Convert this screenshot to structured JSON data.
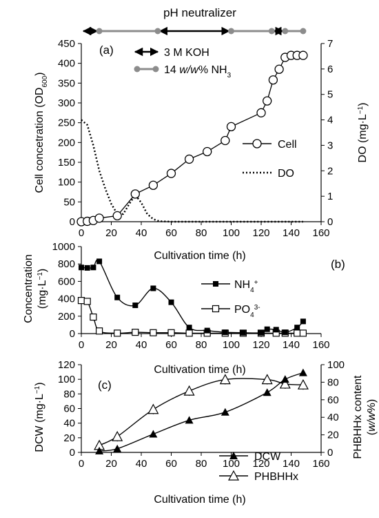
{
  "header": {
    "title": "pH neutralizer",
    "segments": [
      {
        "type": "KOH",
        "start": 0,
        "end": 12
      },
      {
        "type": "NH3",
        "start": 12,
        "end": 51
      },
      {
        "type": "KOH",
        "start": 51,
        "end": 100
      },
      {
        "type": "NH3",
        "start": 100,
        "end": 127
      },
      {
        "type": "KOH",
        "start": 127,
        "end": 136
      },
      {
        "type": "NH3",
        "start": 136,
        "end": 148
      }
    ],
    "markers": [
      0,
      12,
      51,
      100,
      127,
      136,
      148
    ]
  },
  "chart_data": [
    {
      "type": "line",
      "panel_label": "(a)",
      "x_label": "Cultivation time (h)",
      "y_label": "Cell concetration (OD",
      "y_label_sub": "600",
      "y_label_end": ")",
      "y2_label": "DO (mg·L",
      "y2_label_sup": "−1",
      "y2_label_end": ")",
      "xlim": [
        0,
        160
      ],
      "x_ticks": [
        0,
        20,
        40,
        60,
        80,
        100,
        120,
        140,
        160
      ],
      "ylim": [
        0,
        450
      ],
      "y_ticks": [
        0,
        50,
        100,
        150,
        200,
        250,
        300,
        350,
        400,
        450
      ],
      "y2lim": [
        0,
        7
      ],
      "y2_ticks": [
        0,
        1,
        2,
        3,
        4,
        5,
        6,
        7
      ],
      "legend_top": [
        {
          "label": "3 M KOH",
          "style": "double-arrow"
        },
        {
          "label": "14 ",
          "label_italic": "w/w",
          "label_tail": "% NH",
          "label_sub": "3",
          "style": "gray-dots"
        }
      ],
      "series": [
        {
          "name": "Cell",
          "axis": "left",
          "marker": "open-circle",
          "x": [
            0,
            4,
            8,
            12,
            24,
            36,
            48,
            60,
            72,
            84,
            96,
            100,
            120,
            124,
            128,
            132,
            136,
            140,
            144,
            148
          ],
          "y": [
            0,
            1,
            3,
            9,
            15,
            70,
            92,
            122,
            158,
            177,
            205,
            240,
            275,
            305,
            358,
            385,
            415,
            420,
            420,
            420
          ]
        },
        {
          "name": "DO",
          "axis": "right",
          "style": "dotted",
          "x": [
            0,
            4,
            8,
            12,
            16,
            20,
            24,
            28,
            32,
            36,
            40,
            44,
            48,
            52,
            60,
            80,
            100,
            120,
            140,
            148
          ],
          "y": [
            4.0,
            3.8,
            3.0,
            2.0,
            1.3,
            0.7,
            0.3,
            0.3,
            0.7,
            1.05,
            0.75,
            0.3,
            0.1,
            0.02,
            0,
            0,
            0,
            0,
            0,
            0
          ]
        }
      ]
    },
    {
      "type": "line",
      "panel_label": "(b)",
      "x_label": "Cultivation time (h)",
      "y_label": "Concentration",
      "y_label2": "(mg·L",
      "y_label2_sup": "−1",
      "y_label2_end": ")",
      "xlim": [
        0,
        160
      ],
      "x_ticks": [
        0,
        20,
        40,
        60,
        80,
        100,
        120,
        140,
        160
      ],
      "ylim": [
        0,
        1000
      ],
      "y_ticks": [
        0,
        200,
        400,
        600,
        800,
        1000
      ],
      "series": [
        {
          "name": "NH",
          "name_sub": "4",
          "name_sup": "+",
          "marker": "filled-square",
          "x": [
            0,
            4,
            8,
            12,
            24,
            36,
            48,
            60,
            72,
            84,
            96,
            108,
            120,
            124,
            130,
            136,
            144,
            148
          ],
          "y": [
            760,
            755,
            760,
            830,
            415,
            325,
            520,
            360,
            70,
            35,
            15,
            10,
            10,
            50,
            45,
            15,
            70,
            140
          ]
        },
        {
          "name": "PO",
          "name_sub": "4",
          "name_sup": "3-",
          "marker": "open-square",
          "x": [
            0,
            4,
            8,
            12,
            24,
            36,
            48,
            60,
            72,
            84,
            96,
            108,
            120,
            130,
            136,
            144,
            148
          ],
          "y": [
            380,
            370,
            190,
            30,
            5,
            15,
            10,
            10,
            5,
            5,
            5,
            5,
            5,
            5,
            5,
            5,
            5
          ]
        }
      ]
    },
    {
      "type": "line",
      "panel_label": "(c)",
      "x_label": "Cultivation time (h)",
      "y_label": "DCW (mg·L",
      "y_label_sup": "−1",
      "y_label_end": ")",
      "y2_label": "PHBHHx content",
      "y2_label2_start": "(",
      "y2_label2_italic": "w/w",
      "y2_label2_end": "%)",
      "xlim": [
        0,
        160
      ],
      "x_ticks": [
        0,
        20,
        40,
        60,
        80,
        100,
        120,
        140,
        160
      ],
      "ylim": [
        0,
        120
      ],
      "y_ticks": [
        0,
        20,
        40,
        60,
        80,
        100,
        120
      ],
      "y2lim": [
        0,
        100
      ],
      "y2_ticks": [
        0,
        20,
        40,
        60,
        80,
        100
      ],
      "series": [
        {
          "name": "DCW",
          "axis": "left",
          "marker": "filled-triangle",
          "x": [
            12,
            24,
            48,
            72,
            96,
            124,
            136,
            148
          ],
          "y": [
            2,
            5,
            25,
            44,
            55,
            82,
            100,
            109
          ]
        },
        {
          "name": "PHBHHx",
          "axis": "right",
          "marker": "open-triangle",
          "x": [
            12,
            24,
            48,
            72,
            96,
            124,
            136,
            148
          ],
          "y": [
            8,
            18,
            49,
            70,
            83,
            83,
            78,
            77
          ]
        }
      ]
    }
  ]
}
